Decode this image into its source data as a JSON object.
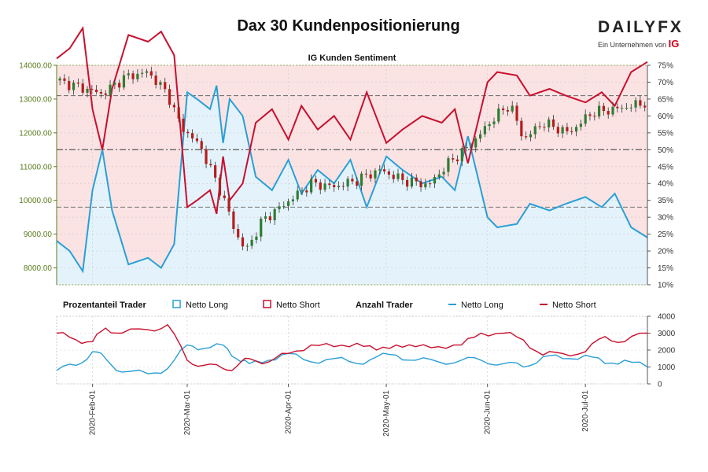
{
  "page": {
    "title": "Dax 30 Kundenpositionierung",
    "logo_main": "DAILYFX",
    "logo_sub": "Ein Unternehmen von",
    "logo_ig": "IG"
  },
  "colors": {
    "long": "#2a9fd6",
    "short": "#c8102e",
    "long_fill": "#e4f3fb",
    "short_fill": "#fbe3e4",
    "candle_up": "#2e7d32",
    "candle_down": "#b71c1c",
    "left_axis": "#5a7d1e"
  },
  "legend": {
    "group1": "Prozentanteil Trader",
    "group2": "Anzahl Trader",
    "long": "Netto Long",
    "short": "Netto Short"
  },
  "chart_data": [
    {
      "type": "candlestick+area",
      "title": "IG Kunden Sentiment",
      "y_left": {
        "range": [
          7500,
          14000
        ],
        "ticks": [
          "8000.00",
          "9000.00",
          "10000.00",
          "11000.00",
          "12000.00",
          "13000.00",
          "14000.00"
        ]
      },
      "y_right": {
        "range": [
          10,
          75
        ],
        "ticks": [
          "10%",
          "15%",
          "20%",
          "25%",
          "30%",
          "35%",
          "40%",
          "45%",
          "50%",
          "55%",
          "60%",
          "65%",
          "70%",
          "75%"
        ]
      },
      "reference_lines": [
        13100,
        11500,
        9800
      ],
      "x_range": [
        "2020-01-21",
        "2020-07-20"
      ],
      "x_ticks": [
        "2020-Feb-01",
        "2020-Mar-01",
        "2020-Apr-01",
        "2020-May-01",
        "2020-Jun-01",
        "2020-Jul-01"
      ],
      "x_tick_dates": [
        "2020-02-01",
        "2020-03-01",
        "2020-04-01",
        "2020-05-01",
        "2020-06-01",
        "2020-07-01"
      ],
      "price_close_dates": [
        "2020-01-21",
        "2020-01-28",
        "2020-02-04",
        "2020-02-11",
        "2020-02-18",
        "2020-02-24",
        "2020-02-28",
        "2020-03-05",
        "2020-03-12",
        "2020-03-16",
        "2020-03-19",
        "2020-03-24",
        "2020-03-31",
        "2020-04-08",
        "2020-04-15",
        "2020-04-22",
        "2020-04-29",
        "2020-05-06",
        "2020-05-14",
        "2020-05-20",
        "2020-05-27",
        "2020-06-03",
        "2020-06-08",
        "2020-06-12",
        "2020-06-18",
        "2020-06-26",
        "2020-07-03",
        "2020-07-10",
        "2020-07-20"
      ],
      "price_close": [
        13550,
        13350,
        13150,
        13650,
        13800,
        13150,
        12200,
        11600,
        10100,
        9000,
        8500,
        9400,
        9900,
        10500,
        10400,
        10600,
        10900,
        10600,
        10450,
        11100,
        11650,
        12450,
        12850,
        11800,
        12300,
        12000,
        12600,
        12700,
        12900
      ],
      "long_pct_dates": [
        "2020-01-21",
        "2020-01-25",
        "2020-01-29",
        "2020-02-01",
        "2020-02-04",
        "2020-02-07",
        "2020-02-12",
        "2020-02-18",
        "2020-02-22",
        "2020-02-26",
        "2020-03-01",
        "2020-03-04",
        "2020-03-08",
        "2020-03-10",
        "2020-03-12",
        "2020-03-14",
        "2020-03-18",
        "2020-03-22",
        "2020-03-27",
        "2020-04-01",
        "2020-04-05",
        "2020-04-10",
        "2020-04-15",
        "2020-04-20",
        "2020-04-25",
        "2020-05-01",
        "2020-05-06",
        "2020-05-12",
        "2020-05-18",
        "2020-05-22",
        "2020-05-26",
        "2020-06-01",
        "2020-06-04",
        "2020-06-10",
        "2020-06-14",
        "2020-06-20",
        "2020-06-25",
        "2020-07-01",
        "2020-07-06",
        "2020-07-10",
        "2020-07-15",
        "2020-07-20"
      ],
      "long_pct": [
        23,
        20,
        14,
        38,
        50,
        32,
        16,
        18,
        15,
        22,
        67,
        65,
        62,
        69,
        52,
        65,
        60,
        42,
        38,
        47,
        37,
        44,
        40,
        47,
        33,
        48,
        44,
        40,
        42,
        38,
        54,
        30,
        27,
        28,
        34,
        32,
        34,
        36,
        33,
        37,
        27,
        24
      ],
      "short_pct_dates": [
        "2020-01-21",
        "2020-01-25",
        "2020-01-29",
        "2020-02-01",
        "2020-02-04",
        "2020-02-07",
        "2020-02-12",
        "2020-02-18",
        "2020-02-22",
        "2020-02-26",
        "2020-03-01",
        "2020-03-04",
        "2020-03-08",
        "2020-03-10",
        "2020-03-12",
        "2020-03-14",
        "2020-03-18",
        "2020-03-22",
        "2020-03-27",
        "2020-04-01",
        "2020-04-05",
        "2020-04-10",
        "2020-04-15",
        "2020-04-20",
        "2020-04-25",
        "2020-05-01",
        "2020-05-06",
        "2020-05-12",
        "2020-05-18",
        "2020-05-22",
        "2020-05-26",
        "2020-06-01",
        "2020-06-04",
        "2020-06-10",
        "2020-06-14",
        "2020-06-20",
        "2020-06-25",
        "2020-07-01",
        "2020-07-06",
        "2020-07-10",
        "2020-07-15",
        "2020-07-20"
      ],
      "short_pct": [
        77,
        80,
        86,
        62,
        50,
        68,
        84,
        82,
        85,
        78,
        33,
        35,
        38,
        31,
        48,
        35,
        40,
        58,
        62,
        53,
        63,
        56,
        60,
        53,
        67,
        52,
        56,
        60,
        58,
        62,
        46,
        70,
        73,
        72,
        66,
        68,
        66,
        64,
        67,
        63,
        73,
        76
      ]
    },
    {
      "type": "line",
      "y_range": [
        0,
        4000
      ],
      "y_ticks": [
        "0",
        "1000",
        "2000",
        "3000",
        "4000"
      ],
      "series": [
        {
          "name": "Netto Long",
          "x": [
            "2020-01-21",
            "2020-01-27",
            "2020-02-01",
            "2020-02-05",
            "2020-02-10",
            "2020-02-18",
            "2020-02-24",
            "2020-03-01",
            "2020-03-06",
            "2020-03-12",
            "2020-03-16",
            "2020-03-20",
            "2020-03-26",
            "2020-04-01",
            "2020-04-08",
            "2020-04-15",
            "2020-04-22",
            "2020-04-28",
            "2020-05-04",
            "2020-05-10",
            "2020-05-17",
            "2020-05-24",
            "2020-05-30",
            "2020-06-06",
            "2020-06-12",
            "2020-06-18",
            "2020-06-24",
            "2020-07-01",
            "2020-07-07",
            "2020-07-13",
            "2020-07-20"
          ],
          "values": [
            800,
            1100,
            1900,
            1500,
            700,
            600,
            900,
            2300,
            2100,
            2300,
            1500,
            1200,
            1400,
            1800,
            1300,
            1500,
            1200,
            1600,
            1700,
            1400,
            1300,
            1400,
            1400,
            1200,
            1000,
            1600,
            1500,
            1700,
            1200,
            1400,
            1000
          ]
        },
        {
          "name": "Netto Short",
          "x": [
            "2020-01-21",
            "2020-01-27",
            "2020-02-01",
            "2020-02-05",
            "2020-02-10",
            "2020-02-18",
            "2020-02-24",
            "2020-03-01",
            "2020-03-06",
            "2020-03-12",
            "2020-03-16",
            "2020-03-20",
            "2020-03-26",
            "2020-04-01",
            "2020-04-08",
            "2020-04-15",
            "2020-04-22",
            "2020-04-28",
            "2020-05-04",
            "2020-05-10",
            "2020-05-17",
            "2020-05-24",
            "2020-05-30",
            "2020-06-06",
            "2020-06-12",
            "2020-06-18",
            "2020-06-24",
            "2020-07-01",
            "2020-07-07",
            "2020-07-13",
            "2020-07-20"
          ],
          "values": [
            3000,
            2600,
            2500,
            3300,
            3000,
            3200,
            3500,
            1400,
            1100,
            900,
            1000,
            1500,
            1300,
            1800,
            2300,
            2200,
            2400,
            2000,
            2300,
            2200,
            2200,
            2300,
            3000,
            3000,
            2600,
            1700,
            1800,
            1900,
            2800,
            2500,
            3000
          ]
        }
      ]
    }
  ]
}
